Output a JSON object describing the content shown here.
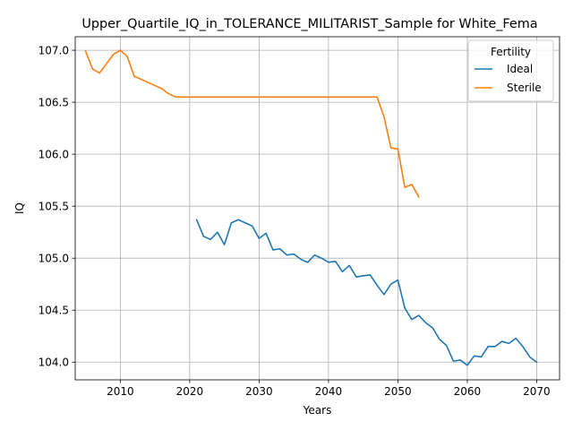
{
  "chart_data": {
    "type": "line",
    "title": "Upper_Quartile_IQ_in_TOLERANCE_MILITARIST_Sample for White_Fema",
    "xlabel": "Years",
    "ylabel": "IQ",
    "xlim": [
      2003.5,
      2073.3
    ],
    "ylim": [
      103.83,
      107.13
    ],
    "xticks": [
      2010,
      2020,
      2030,
      2040,
      2050,
      2060,
      2070
    ],
    "yticks": [
      104.0,
      104.5,
      105.0,
      105.5,
      106.0,
      106.5,
      107.0
    ],
    "ytick_labels": [
      "104.0",
      "104.5",
      "105.0",
      "105.5",
      "106.0",
      "106.5",
      "107.0"
    ],
    "grid": true,
    "legend": {
      "title": "Fertility",
      "placement": "top-right"
    },
    "series": [
      {
        "name": "Ideal",
        "color": "#1f77b4",
        "x": [
          2021,
          2022,
          2023,
          2024,
          2025,
          2026,
          2027,
          2028,
          2029,
          2030,
          2031,
          2032,
          2033,
          2034,
          2035,
          2036,
          2037,
          2038,
          2039,
          2040,
          2041,
          2042,
          2043,
          2044,
          2045,
          2046,
          2047,
          2048,
          2049,
          2050,
          2051,
          2052,
          2053,
          2054,
          2055,
          2056,
          2057,
          2058,
          2059,
          2060,
          2061,
          2062,
          2063,
          2064,
          2065,
          2066,
          2067,
          2068,
          2069,
          2070
        ],
        "values": [
          105.37,
          105.21,
          105.18,
          105.25,
          105.13,
          105.34,
          105.37,
          105.34,
          105.31,
          105.19,
          105.24,
          105.08,
          105.09,
          105.03,
          105.04,
          104.99,
          104.96,
          105.03,
          105.0,
          104.96,
          104.97,
          104.87,
          104.93,
          104.82,
          104.83,
          104.84,
          104.74,
          104.65,
          104.75,
          104.79,
          104.52,
          104.41,
          104.45,
          104.38,
          104.33,
          104.22,
          104.16,
          104.01,
          104.02,
          103.97,
          104.06,
          104.05,
          104.15,
          104.15,
          104.2,
          104.18,
          104.23,
          104.15,
          104.05,
          104.0
        ]
      },
      {
        "name": "Sterile",
        "color": "#ff7f0e",
        "x": [
          2005,
          2006,
          2007,
          2008,
          2009,
          2010,
          2011,
          2012,
          2013,
          2014,
          2015,
          2016,
          2017,
          2018,
          2019,
          2020,
          2025,
          2030,
          2035,
          2040,
          2045,
          2047,
          2048,
          2049,
          2050,
          2051,
          2052,
          2053
        ],
        "values": [
          106.99,
          106.82,
          106.78,
          106.87,
          106.96,
          107.0,
          106.94,
          106.75,
          106.72,
          106.69,
          106.66,
          106.63,
          106.58,
          106.55,
          106.55,
          106.55,
          106.55,
          106.55,
          106.55,
          106.55,
          106.55,
          106.55,
          106.36,
          106.06,
          106.05,
          105.68,
          105.71,
          105.59
        ]
      }
    ]
  }
}
